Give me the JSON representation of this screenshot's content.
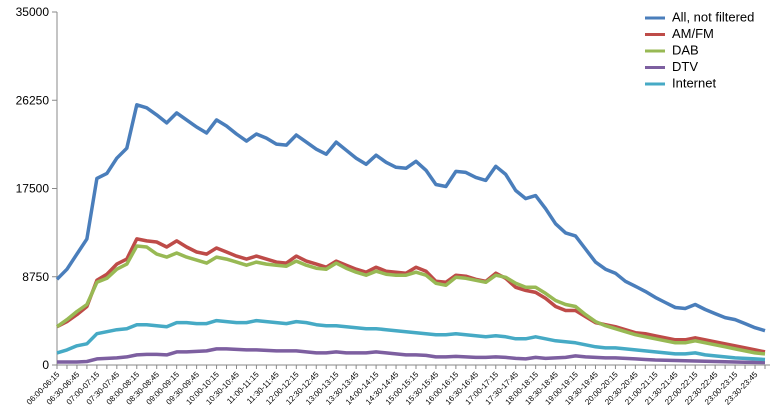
{
  "chart_data": {
    "type": "line",
    "categories": [
      "06:00-06:15",
      null,
      "06:30-06:45",
      null,
      "07:00-07:15",
      null,
      "07:30-07:45",
      null,
      "08:00-08:15",
      null,
      "08:30-08:45",
      null,
      "09:00-09:15",
      null,
      "09:30-09:45",
      null,
      "10:00-10:15",
      null,
      "10:30-10:45",
      null,
      "11:00-11:15",
      null,
      "11:30-11:45",
      null,
      "12:00-12:15",
      null,
      "12:30-12:45",
      null,
      "13:00-13:15",
      null,
      "13:30-13:45",
      null,
      "14:00-14:15",
      null,
      "14:30-14:45",
      null,
      "15:00-15:15",
      null,
      "15:30-15:45",
      null,
      "16:00-16:15",
      null,
      "16:30-16:45",
      null,
      "17:00-17:15",
      null,
      "17:30-17:45",
      null,
      "18:00-18:15",
      null,
      "18:30-18:45",
      null,
      "19:00-19:15",
      null,
      "19:30-19:45",
      null,
      "20:00-20:15",
      null,
      "20:30-20:45",
      null,
      "21:00-21:15",
      null,
      "21:30-21:45",
      null,
      "22:00-22:15",
      null,
      "22:30-22:45",
      null,
      "23:00-23:15",
      null,
      "23:30-23:45",
      null
    ],
    "series": [
      {
        "name": "All, not filtered",
        "color": "#4a7ebb",
        "values": [
          8500,
          9500,
          11000,
          12500,
          18500,
          19000,
          20500,
          21500,
          25800,
          25500,
          24800,
          24000,
          25000,
          24300,
          23600,
          23000,
          24300,
          23700,
          22900,
          22200,
          22900,
          22500,
          21900,
          21800,
          22800,
          22100,
          21400,
          20900,
          22100,
          21300,
          20500,
          19900,
          20800,
          20100,
          19600,
          19500,
          20200,
          19300,
          17900,
          17700,
          19200,
          19100,
          18600,
          18300,
          19700,
          18900,
          17300,
          16500,
          16800,
          15500,
          14000,
          13100,
          12800,
          11500,
          10200,
          9500,
          9100,
          8300,
          7800,
          7300,
          6700,
          6200,
          5700,
          5600,
          6000,
          5500,
          5100,
          4700,
          4500,
          4100,
          3700,
          3400
        ]
      },
      {
        "name": "AM/FM",
        "color": "#be4b48",
        "values": [
          3800,
          4300,
          5000,
          5800,
          8400,
          9000,
          10000,
          10500,
          12500,
          12300,
          12200,
          11700,
          12300,
          11700,
          11200,
          11000,
          11600,
          11200,
          10800,
          10500,
          10800,
          10500,
          10200,
          10100,
          10800,
          10300,
          10000,
          9700,
          10300,
          9900,
          9500,
          9200,
          9700,
          9300,
          9200,
          9100,
          9700,
          9300,
          8300,
          8200,
          8900,
          8800,
          8500,
          8300,
          9100,
          8600,
          7700,
          7400,
          7200,
          6600,
          5800,
          5400,
          5400,
          4800,
          4200,
          4000,
          3800,
          3500,
          3200,
          3100,
          2900,
          2700,
          2500,
          2500,
          2700,
          2500,
          2300,
          2100,
          1900,
          1700,
          1500,
          1300
        ]
      },
      {
        "name": "DAB",
        "color": "#98b954",
        "values": [
          3800,
          4500,
          5300,
          6000,
          8200,
          8600,
          9500,
          10000,
          11800,
          11700,
          11000,
          10700,
          11100,
          10700,
          10400,
          10100,
          10700,
          10500,
          10200,
          9900,
          10200,
          10000,
          9900,
          9800,
          10300,
          9900,
          9600,
          9500,
          10100,
          9600,
          9200,
          8900,
          9300,
          9000,
          8900,
          8900,
          9200,
          8900,
          8100,
          7900,
          8700,
          8600,
          8400,
          8200,
          8900,
          8700,
          8100,
          7700,
          7700,
          7100,
          6400,
          6000,
          5800,
          5000,
          4300,
          3900,
          3600,
          3300,
          3000,
          2800,
          2600,
          2400,
          2200,
          2200,
          2400,
          2200,
          2000,
          1800,
          1600,
          1400,
          1200,
          1100
        ]
      },
      {
        "name": "DTV",
        "color": "#7d5fa0",
        "values": [
          300,
          300,
          300,
          350,
          600,
          650,
          700,
          800,
          1000,
          1050,
          1050,
          1000,
          1300,
          1300,
          1350,
          1400,
          1600,
          1600,
          1550,
          1500,
          1500,
          1450,
          1400,
          1400,
          1400,
          1300,
          1200,
          1200,
          1300,
          1200,
          1200,
          1200,
          1300,
          1200,
          1100,
          1000,
          1000,
          950,
          800,
          800,
          850,
          800,
          750,
          750,
          800,
          750,
          650,
          600,
          750,
          650,
          700,
          750,
          900,
          800,
          750,
          700,
          700,
          650,
          600,
          550,
          500,
          480,
          450,
          420,
          400,
          380,
          350,
          330,
          300,
          280,
          260,
          250
        ]
      },
      {
        "name": "Internet",
        "color": "#46aac5",
        "values": [
          1200,
          1500,
          1900,
          2100,
          3100,
          3300,
          3500,
          3600,
          4000,
          4000,
          3900,
          3800,
          4200,
          4200,
          4100,
          4100,
          4400,
          4300,
          4200,
          4200,
          4400,
          4300,
          4200,
          4100,
          4300,
          4200,
          4000,
          3900,
          3900,
          3800,
          3700,
          3600,
          3600,
          3500,
          3400,
          3300,
          3200,
          3100,
          3000,
          3000,
          3100,
          3000,
          2900,
          2800,
          2900,
          2800,
          2600,
          2600,
          2800,
          2600,
          2400,
          2300,
          2200,
          2000,
          1800,
          1700,
          1700,
          1600,
          1500,
          1400,
          1300,
          1200,
          1100,
          1100,
          1200,
          1000,
          900,
          800,
          700,
          650,
          600,
          550
        ]
      }
    ],
    "ylim": [
      0,
      35000
    ],
    "yticks": [
      0,
      8750,
      17500,
      26250,
      35000
    ],
    "grid": false,
    "legend": "top-right"
  }
}
